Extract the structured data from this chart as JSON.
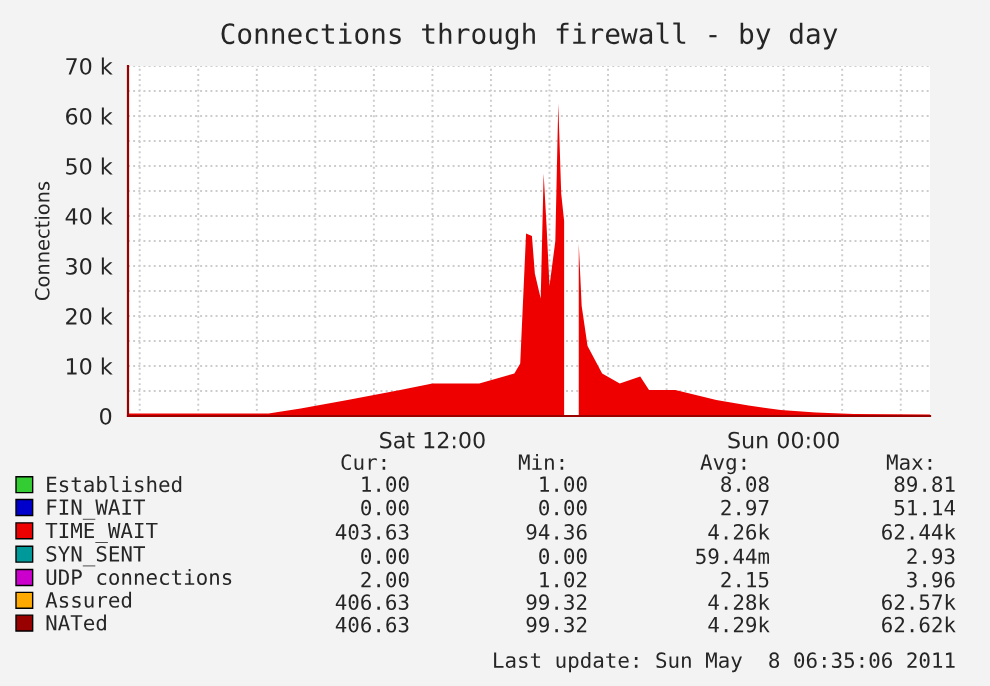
{
  "chart_data": {
    "type": "area",
    "title": "Connections through firewall - by day",
    "ylabel": "Connections",
    "xlim": [
      "2011-05-07T01:36",
      "2011-05-08T05:00"
    ],
    "xticks": [
      {
        "value": "2011-05-07T12:00",
        "label": "Sat 12:00"
      },
      {
        "value": "2011-05-08T00:00",
        "label": "Sun 00:00"
      }
    ],
    "ylim": [
      0,
      70000
    ],
    "yticks": [
      0,
      {
        "value": 10000,
        "label": "10 k"
      },
      {
        "value": 20000,
        "label": "20 k"
      },
      {
        "value": 30000,
        "label": "30 k"
      },
      {
        "value": 40000,
        "label": "40 k"
      },
      {
        "value": 50000,
        "label": "50 k"
      },
      {
        "value": 60000,
        "label": "60 k"
      },
      {
        "value": 70000,
        "label": "70 k"
      }
    ],
    "grid": true,
    "legend": "bottom left",
    "series": [
      {
        "name": "Established",
        "color": "#33cc33"
      },
      {
        "name": "FIN_WAIT",
        "color": "#0000cc"
      },
      {
        "name": "TIME_WAIT",
        "color": "#ee0000",
        "x": [
          "2011-05-07T01:36",
          "2011-05-07T04:00",
          "2011-05-07T06:24",
          "2011-05-07T07:30",
          "2011-05-07T09:06",
          "2011-05-07T10:54",
          "2011-05-07T12:00",
          "2011-05-07T13:36",
          "2011-05-07T14:48",
          "2011-05-07T15:00",
          "2011-05-07T15:12",
          "2011-05-07T15:24",
          "2011-05-07T15:30",
          "2011-05-07T15:42",
          "2011-05-07T15:48",
          "2011-05-07T15:54",
          "2011-05-07T16:00",
          "2011-05-07T16:12",
          "2011-05-07T16:18",
          "2011-05-07T16:24",
          "2011-05-07T16:30",
          "2011-05-07T16:36",
          "2011-05-07T16:54",
          "2011-05-07T17:00",
          "2011-05-07T17:06",
          "2011-05-07T17:18",
          "2011-05-07T17:48",
          "2011-05-07T18:24",
          "2011-05-07T19:06",
          "2011-05-07T19:24",
          "2011-05-07T20:18",
          "2011-05-07T21:42",
          "2011-05-07T22:48",
          "2011-05-07T23:54",
          "2011-05-08T01:06",
          "2011-05-08T02:24",
          "2011-05-08T05:00"
        ],
        "values": [
          500,
          500,
          500,
          1500,
          3200,
          5200,
          6500,
          6500,
          8500,
          10500,
          36500,
          36000,
          28500,
          23500,
          48500,
          38000,
          26000,
          35000,
          62500,
          44500,
          39000,
          null,
          null,
          34500,
          22000,
          14000,
          8500,
          6500,
          7900,
          5200,
          5200,
          3200,
          2100,
          1200,
          700,
          400,
          300
        ]
      },
      {
        "name": "SYN_SENT",
        "color": "#009999"
      },
      {
        "name": "UDP connections",
        "color": "#cc00cc"
      },
      {
        "name": "Assured",
        "color": "#ffaa00"
      },
      {
        "name": "NATed",
        "color": "#990000"
      }
    ],
    "annotations": [
      "Cur:",
      "Min:",
      "Avg:",
      "Max:",
      "1.00",
      "1.00",
      "8.08",
      "89.81",
      "0.00",
      "0.00",
      "2.97",
      "51.14",
      "403.63",
      "94.36",
      "4.26k",
      "62.44k",
      "0.00",
      "0.00",
      "59.44m",
      "2.93",
      "2.00",
      "1.02",
      "2.15",
      "3.96",
      "406.63",
      "99.32",
      "4.28k",
      "62.57k",
      "406.63",
      "99.32",
      "4.29k",
      "62.62k",
      "Last update: Sun May  8 06:35:06 2011"
    ]
  }
}
